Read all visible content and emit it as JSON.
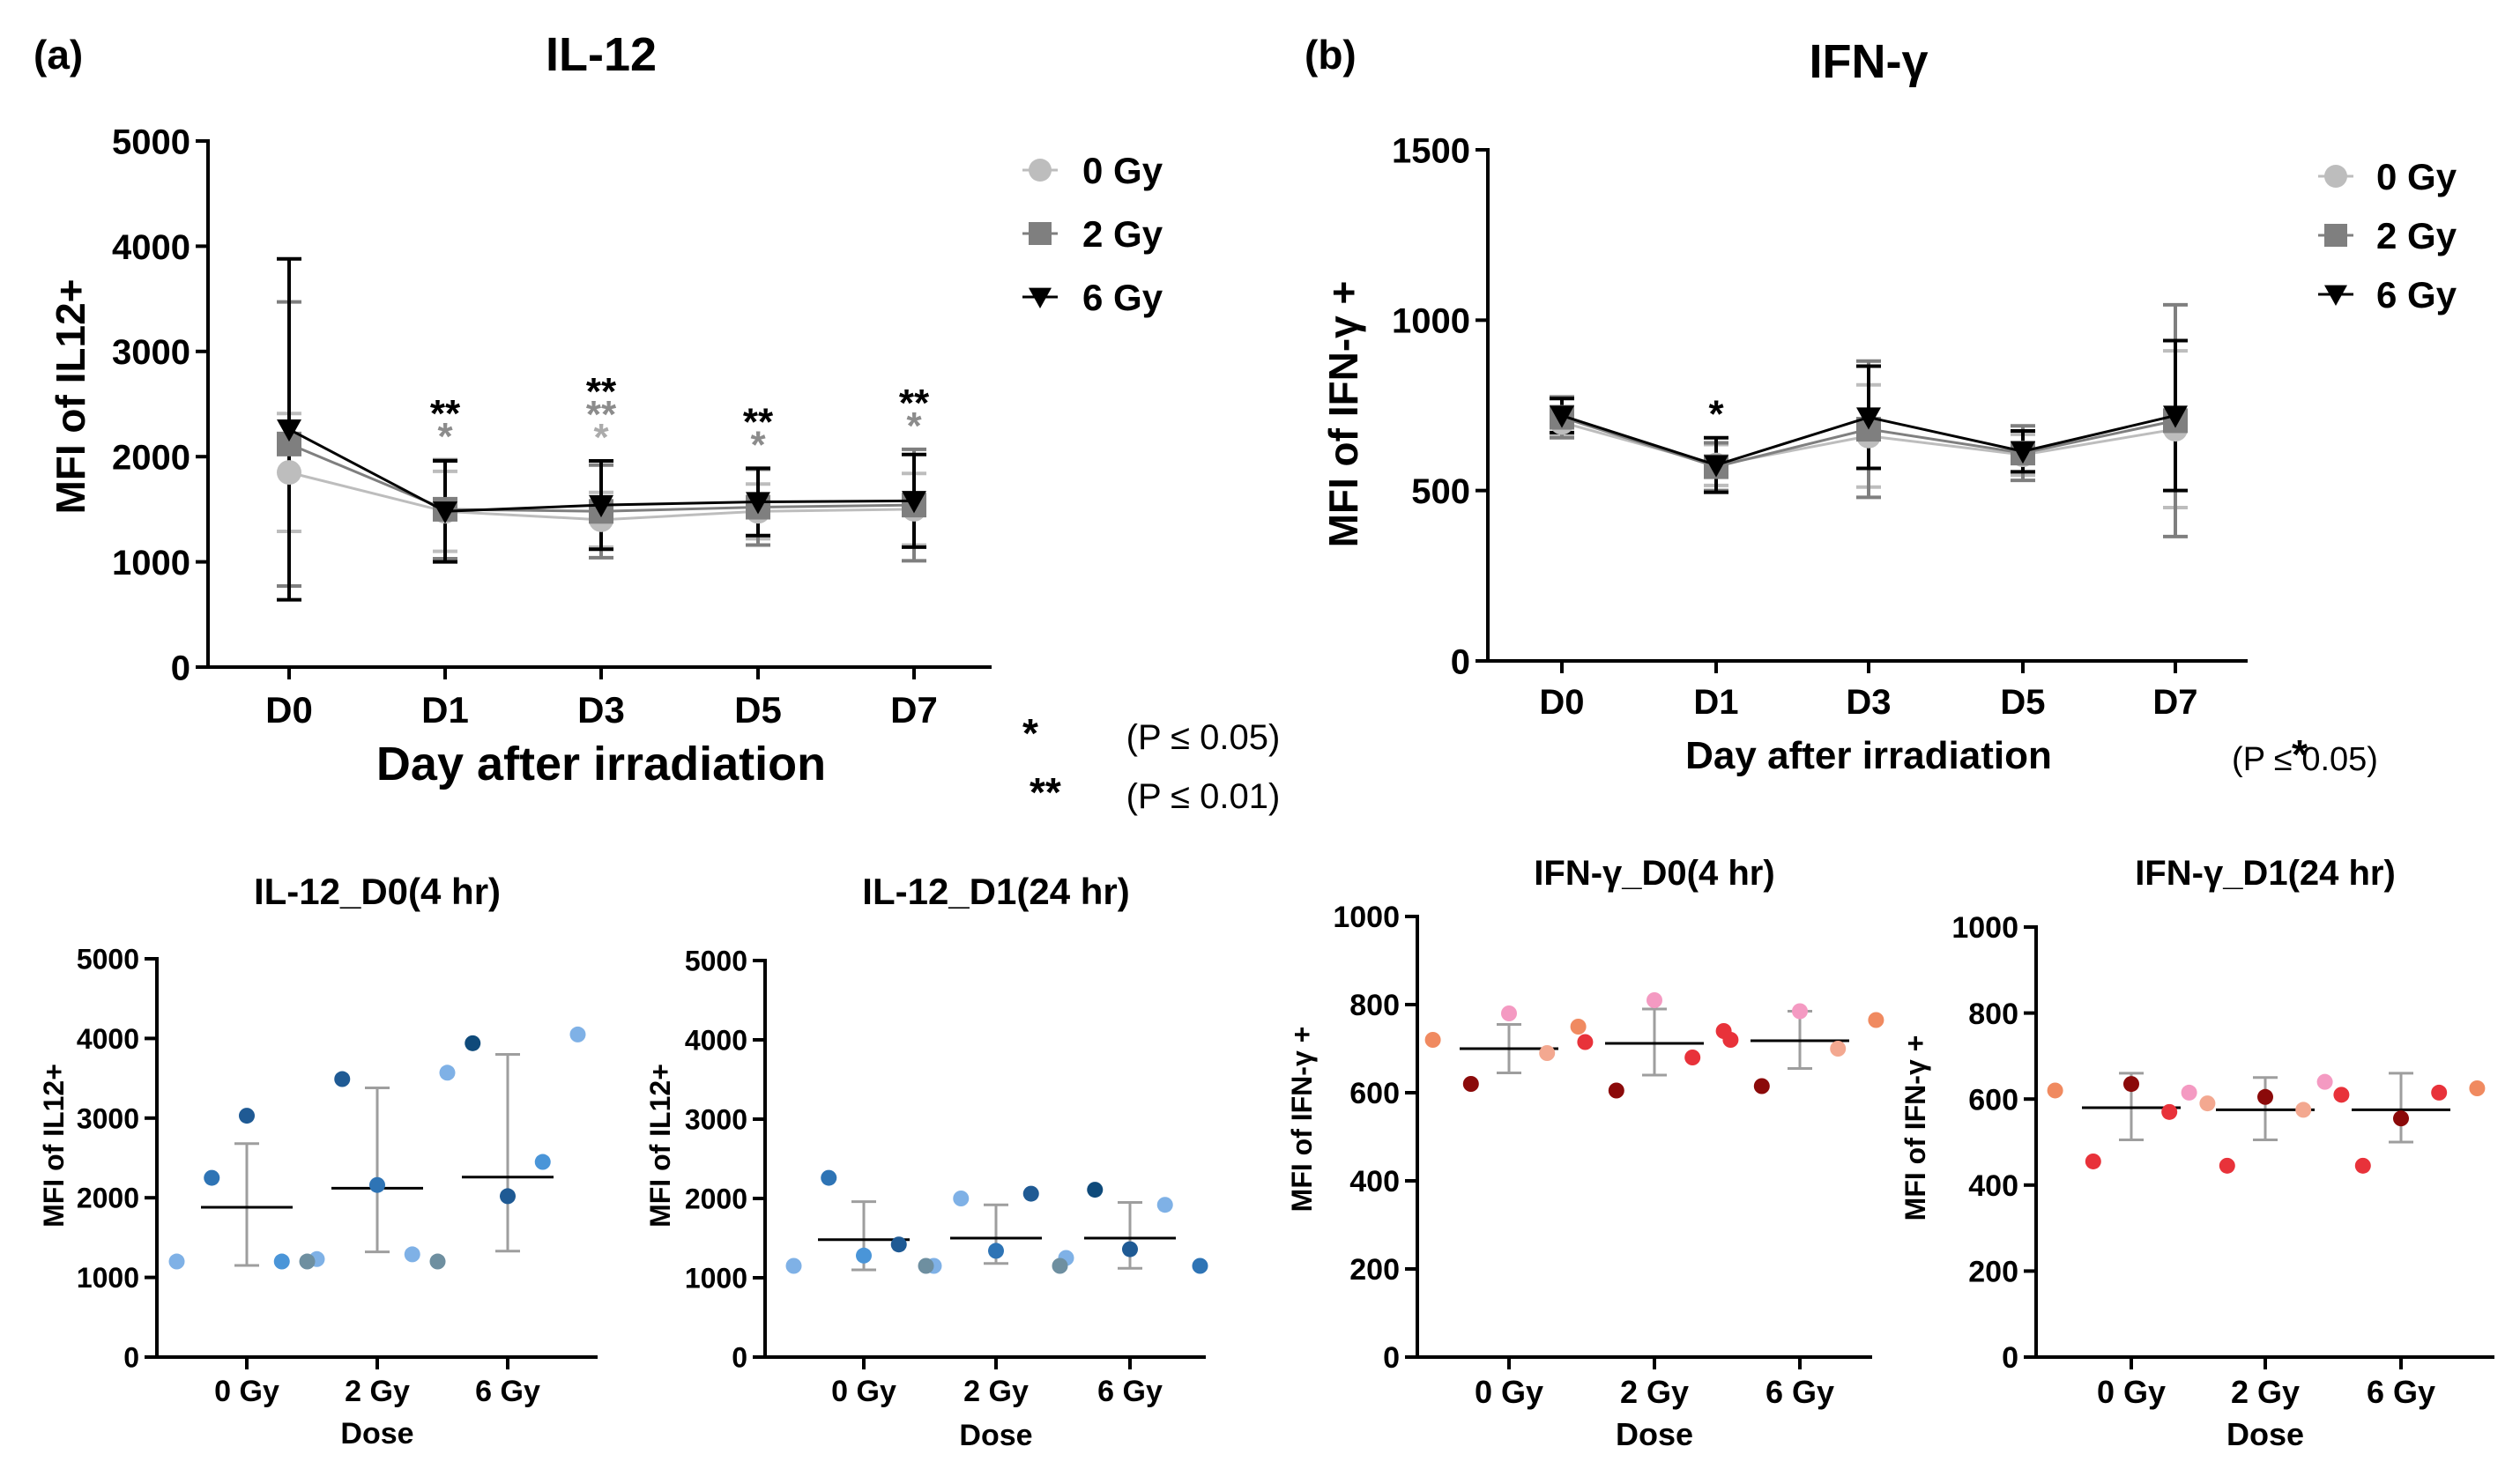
{
  "panel_labels": {
    "a": "(a)",
    "b": "(b)"
  },
  "colors": {
    "0gy": "#bdbdbd",
    "2gy": "#7f7f7f",
    "6gy": "#000000",
    "sig_black": "#000000",
    "sig_gray": "#8c8c8c",
    "sig_light": "#ababab",
    "bar": "#9e9e9e",
    "mean": "#000000"
  },
  "chart_data": [
    {
      "id": "il12-time",
      "type": "line",
      "title": "IL-12",
      "xlabel": "Day after irradiation",
      "ylabel": "MFI of IL12+",
      "categories": [
        "D0",
        "D1",
        "D3",
        "D5",
        "D7"
      ],
      "ylim": [
        0,
        5000
      ],
      "yticks": [
        0,
        1000,
        2000,
        3000,
        4000,
        5000
      ],
      "legend": "top-right",
      "series": [
        {
          "name": "0 Gy",
          "marker": "circle",
          "color": "#bdbdbd",
          "values": [
            1850,
            1480,
            1400,
            1480,
            1500
          ],
          "err": [
            560,
            380,
            260,
            260,
            340
          ]
        },
        {
          "name": "2 Gy",
          "marker": "square",
          "color": "#7f7f7f",
          "values": [
            2120,
            1500,
            1480,
            1520,
            1540
          ],
          "err": [
            1350,
            470,
            440,
            360,
            530
          ]
        },
        {
          "name": "6 Gy",
          "marker": "triangle-down",
          "color": "#000000",
          "values": [
            2260,
            1480,
            1540,
            1570,
            1580
          ],
          "err": [
            1620,
            480,
            420,
            320,
            440
          ]
        }
      ],
      "significance": [
        {
          "category": "D1",
          "marks": [
            {
              "text": "**",
              "color": "#000000"
            },
            {
              "text": "*",
              "color": "#8c8c8c"
            }
          ]
        },
        {
          "category": "D3",
          "marks": [
            {
              "text": "**",
              "color": "#000000"
            },
            {
              "text": "**",
              "color": "#8c8c8c"
            },
            {
              "text": "*",
              "color": "#ababab"
            }
          ]
        },
        {
          "category": "D5",
          "marks": [
            {
              "text": "**",
              "color": "#000000"
            },
            {
              "text": "*",
              "color": "#8c8c8c"
            }
          ]
        },
        {
          "category": "D7",
          "marks": [
            {
              "text": "**",
              "color": "#000000"
            },
            {
              "text": "*",
              "color": "#8c8c8c"
            }
          ]
        }
      ],
      "sig_notes": [
        {
          "mark": "*",
          "text": "(P ≤ 0.05)"
        },
        {
          "mark": "**",
          "text": "(P ≤ 0.01)"
        }
      ]
    },
    {
      "id": "ifng-time",
      "type": "line",
      "title": "IFN-γ",
      "xlabel": "Day after irradiation",
      "ylabel": "MFI of IFN-γ +",
      "categories": [
        "D0",
        "D1",
        "D3",
        "D5",
        "D7"
      ],
      "ylim": [
        0,
        1500
      ],
      "yticks": [
        0,
        500,
        1000,
        1500
      ],
      "legend": "top-right",
      "series": [
        {
          "name": "0 Gy",
          "marker": "circle",
          "color": "#bdbdbd",
          "values": [
            700,
            575,
            660,
            605,
            680
          ],
          "err": [
            40,
            60,
            150,
            60,
            230
          ]
        },
        {
          "name": "2 Gy",
          "marker": "square",
          "color": "#7f7f7f",
          "values": [
            715,
            570,
            680,
            610,
            705
          ],
          "err": [
            60,
            70,
            200,
            80,
            340
          ]
        },
        {
          "name": "6 Gy",
          "marker": "triangle-down",
          "color": "#000000",
          "values": [
            720,
            575,
            715,
            615,
            720
          ],
          "err": [
            50,
            80,
            150,
            60,
            220
          ]
        }
      ],
      "significance": [
        {
          "category": "D1",
          "marks": [
            {
              "text": "*",
              "color": "#000000"
            }
          ]
        }
      ],
      "sig_notes": [
        {
          "mark": "*",
          "text": "(P ≤ 0.05)"
        }
      ]
    },
    {
      "id": "il12-d0",
      "type": "scatter",
      "title": "IL-12_D0(4 hr)",
      "xlabel": "Dose",
      "ylabel": "MFI of IL12+",
      "categories": [
        "0 Gy",
        "2 Gy",
        "6 Gy"
      ],
      "ylim": [
        0,
        5000
      ],
      "yticks": [
        0,
        1000,
        2000,
        3000,
        4000,
        5000
      ],
      "summary": [
        {
          "mean": 1880,
          "lo": 1150,
          "hi": 2680
        },
        {
          "mean": 2120,
          "lo": 1320,
          "hi": 3380
        },
        {
          "mean": 2260,
          "lo": 1330,
          "hi": 3800
        }
      ],
      "points": [
        {
          "x": [
            -0.36,
            -0.18,
            0,
            0.18,
            0.36
          ],
          "y": [
            1200,
            2250,
            3030,
            1200,
            1230
          ],
          "color": [
            "#7fb1e6",
            "#2e74b5",
            "#1f5a94",
            "#4a95d8",
            "#7fb1e6"
          ]
        },
        {
          "x": [
            -0.36,
            -0.18,
            0,
            0.18,
            0.36
          ],
          "y": [
            1200,
            3490,
            2160,
            1290,
            3570
          ],
          "color": [
            "#6e8fa0",
            "#1f5a94",
            "#2e74b5",
            "#7fb1e6",
            "#7fb1e6"
          ]
        },
        {
          "x": [
            -0.36,
            -0.18,
            0,
            0.18,
            0.36
          ],
          "y": [
            1200,
            3940,
            2020,
            2450,
            4050
          ],
          "color": [
            "#6e8fa0",
            "#0f4a7a",
            "#1f5a94",
            "#4a95d8",
            "#7fb1e6"
          ]
        }
      ]
    },
    {
      "id": "il12-d1",
      "type": "scatter",
      "title": "IL-12_D1(24 hr)",
      "xlabel": "Dose",
      "ylabel": "MFI of IL12+",
      "categories": [
        "0 Gy",
        "2 Gy",
        "6 Gy"
      ],
      "ylim": [
        0,
        5000
      ],
      "yticks": [
        0,
        1000,
        2000,
        3000,
        4000,
        5000
      ],
      "summary": [
        {
          "mean": 1480,
          "lo": 1100,
          "hi": 1960
        },
        {
          "mean": 1500,
          "lo": 1180,
          "hi": 1920
        },
        {
          "mean": 1500,
          "lo": 1120,
          "hi": 1950
        }
      ],
      "points": [
        {
          "x": [
            -0.36,
            -0.18,
            0,
            0.18,
            0.36
          ],
          "y": [
            1150,
            2260,
            1280,
            1420,
            1150
          ],
          "color": [
            "#7fb1e6",
            "#2e74b5",
            "#4a95d8",
            "#1f5a94",
            "#7fb1e6"
          ]
        },
        {
          "x": [
            -0.36,
            -0.18,
            0,
            0.18,
            0.36
          ],
          "y": [
            1150,
            2000,
            1340,
            2060,
            1250
          ],
          "color": [
            "#6e8fa0",
            "#7fb1e6",
            "#2e74b5",
            "#1f5a94",
            "#7fb1e6"
          ]
        },
        {
          "x": [
            -0.36,
            -0.18,
            0,
            0.18,
            0.36
          ],
          "y": [
            1150,
            2110,
            1360,
            1920,
            1150
          ],
          "color": [
            "#6e8fa0",
            "#0f4a7a",
            "#1f5a94",
            "#7fb1e6",
            "#2e74b5"
          ]
        }
      ]
    },
    {
      "id": "ifng-d0",
      "type": "scatter",
      "title": "IFN-γ_D0(4 hr)",
      "xlabel": "Dose",
      "ylabel": "MFI of IFN-γ +",
      "categories": [
        "0 Gy",
        "2 Gy",
        "6 Gy"
      ],
      "ylim": [
        0,
        1000
      ],
      "yticks": [
        0,
        200,
        400,
        600,
        800,
        1000
      ],
      "summary": [
        {
          "mean": 700,
          "lo": 645,
          "hi": 755
        },
        {
          "mean": 712,
          "lo": 640,
          "hi": 790
        },
        {
          "mean": 718,
          "lo": 655,
          "hi": 785
        }
      ],
      "points": [
        {
          "x": [
            -0.36,
            -0.18,
            0,
            0.18,
            0.36
          ],
          "y": [
            720,
            620,
            780,
            690,
            715
          ],
          "color": [
            "#f08a60",
            "#8b0a0a",
            "#f49ac2",
            "#f3a890",
            "#e8323a"
          ]
        },
        {
          "x": [
            -0.36,
            -0.18,
            0,
            0.18,
            0.36
          ],
          "y": [
            750,
            605,
            810,
            680,
            720
          ],
          "color": [
            "#f08a60",
            "#8b0a0a",
            "#f49ac2",
            "#e8323a",
            "#e8323a"
          ]
        },
        {
          "x": [
            -0.36,
            -0.18,
            0,
            0.18,
            0.36
          ],
          "y": [
            740,
            615,
            785,
            700,
            765
          ],
          "color": [
            "#e8323a",
            "#8b0a0a",
            "#f49ac2",
            "#f3a890",
            "#f08a60"
          ]
        }
      ]
    },
    {
      "id": "ifng-d1",
      "type": "scatter",
      "title": "IFN-γ_D1(24 hr)",
      "xlabel": "Dose",
      "ylabel": "MFI of IFN-γ +",
      "categories": [
        "0 Gy",
        "2 Gy",
        "6 Gy"
      ],
      "ylim": [
        0,
        1000
      ],
      "yticks": [
        0,
        200,
        400,
        600,
        800,
        1000
      ],
      "summary": [
        {
          "mean": 580,
          "lo": 505,
          "hi": 660
        },
        {
          "mean": 575,
          "lo": 505,
          "hi": 650
        },
        {
          "mean": 575,
          "lo": 500,
          "hi": 660
        }
      ],
      "points": [
        {
          "x": [
            -0.36,
            -0.18,
            0,
            0.18,
            0.36
          ],
          "y": [
            620,
            455,
            635,
            570,
            590
          ],
          "color": [
            "#f08a60",
            "#e8323a",
            "#8b0a0a",
            "#e8323a",
            "#f3a890"
          ]
        },
        {
          "x": [
            -0.36,
            -0.18,
            0,
            0.18,
            0.36
          ],
          "y": [
            615,
            445,
            605,
            575,
            610
          ],
          "color": [
            "#f49ac2",
            "#e8323a",
            "#8b0a0a",
            "#f3a890",
            "#e8323a"
          ]
        },
        {
          "x": [
            -0.36,
            -0.18,
            0,
            0.18,
            0.36
          ],
          "y": [
            640,
            445,
            555,
            615,
            625
          ],
          "color": [
            "#f49ac2",
            "#e8323a",
            "#8b0a0a",
            "#e8323a",
            "#f08a60"
          ]
        }
      ]
    }
  ]
}
